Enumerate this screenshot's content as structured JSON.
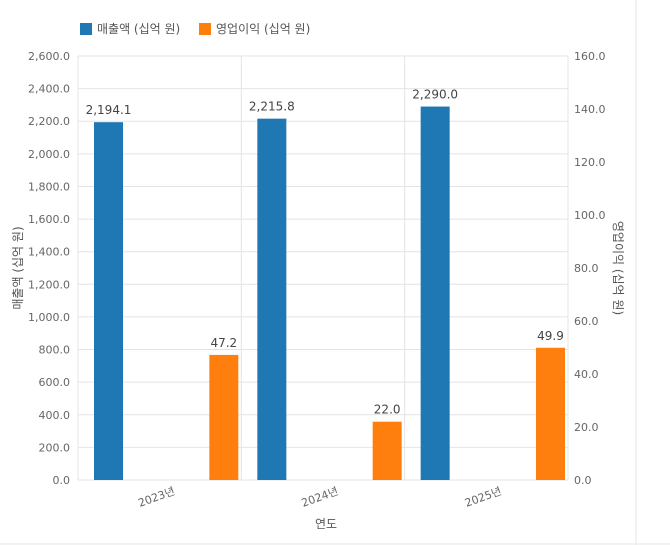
{
  "chart_data": {
    "type": "bar",
    "categories": [
      "2023년",
      "2024년",
      "2025년"
    ],
    "xlabel": "연도",
    "series": [
      {
        "name": "매출액 (십억 원)",
        "axis": "left",
        "color": "#1f77b4",
        "values": [
          2194.1,
          2215.8,
          2290.0
        ],
        "labels": [
          "2,194.1",
          "2,215.8",
          "2,290.0"
        ]
      },
      {
        "name": "영업이익 (십억 원)",
        "axis": "right",
        "color": "#ff7f0e",
        "values": [
          47.2,
          22.0,
          49.9
        ],
        "labels": [
          "47.2",
          "22.0",
          "49.9"
        ]
      }
    ],
    "y_left": {
      "label": "매출액 (십억 원)",
      "ylim": [
        0,
        2600
      ],
      "ticks": [
        "0.0",
        "200.0",
        "400.0",
        "600.0",
        "800.0",
        "1,000.0",
        "1,200.0",
        "1,400.0",
        "1,600.0",
        "1,800.0",
        "2,000.0",
        "2,200.0",
        "2,400.0",
        "2,600.0"
      ]
    },
    "y_right": {
      "label": "영업이익 (십억 원)",
      "ylim": [
        0,
        160
      ],
      "ticks": [
        "0.0",
        "20.0",
        "40.0",
        "60.0",
        "80.0",
        "100.0",
        "120.0",
        "140.0",
        "160.0"
      ]
    },
    "legend_position": "top-left",
    "grid": true
  }
}
